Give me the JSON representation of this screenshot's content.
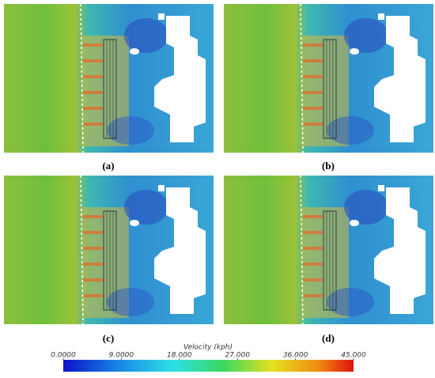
{
  "panels": [
    {
      "label": "(a)"
    },
    {
      "label": "(b)"
    },
    {
      "label": "(c)"
    },
    {
      "label": "(d)"
    }
  ],
  "colorbar": {
    "title": "Velocity (kph)",
    "range": [
      0,
      45
    ],
    "ticks": [
      {
        "value": 0,
        "label": "0.0000"
      },
      {
        "value": 9,
        "label": "9.0000"
      },
      {
        "value": 18,
        "label": "18.000"
      },
      {
        "value": 27,
        "label": "27.000"
      },
      {
        "value": 36,
        "label": "36.000"
      },
      {
        "value": 45,
        "label": "45.000"
      }
    ]
  }
}
